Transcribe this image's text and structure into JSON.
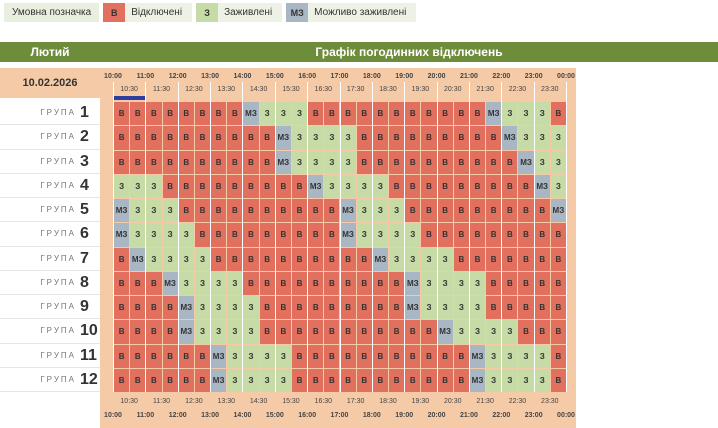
{
  "legend": {
    "title": "Умовна позначка",
    "items": [
      {
        "code": "В",
        "label": "Відключені",
        "color": "#e2705e"
      },
      {
        "code": "З",
        "label": "Заживлені",
        "color": "#c6dba5"
      },
      {
        "code": "МЗ",
        "label": "Можливо заживлені",
        "color": "#a9b6c4"
      }
    ]
  },
  "header": {
    "month": "Лютий",
    "title": "Графік погодинних відключень"
  },
  "date": "10.02.2026",
  "hours": [
    "10:00",
    "11:00",
    "12:00",
    "13:00",
    "14:00",
    "15:00",
    "16:00",
    "17:00",
    "18:00",
    "19:00",
    "20:00",
    "21:00",
    "22:00",
    "23:00",
    "00:00"
  ],
  "half_hours": [
    "10:30",
    "11:30",
    "12:30",
    "13:30",
    "14:30",
    "15:30",
    "16:30",
    "17:30",
    "18:30",
    "19:30",
    "20:30",
    "21:30",
    "22:30",
    "23:30"
  ],
  "groups": [
    {
      "label": "ГРУПА",
      "number": "1",
      "cells": [
        "В",
        "В",
        "В",
        "В",
        "В",
        "В",
        "В",
        "В",
        "МЗ",
        "З",
        "З",
        "З",
        "В",
        "В",
        "В",
        "В",
        "В",
        "В",
        "В",
        "В",
        "В",
        "В",
        "В",
        "МЗ",
        "З",
        "З",
        "З",
        "В"
      ]
    },
    {
      "label": "ГРУПА",
      "number": "2",
      "cells": [
        "В",
        "В",
        "В",
        "В",
        "В",
        "В",
        "В",
        "В",
        "В",
        "В",
        "МЗ",
        "З",
        "З",
        "З",
        "З",
        "В",
        "В",
        "В",
        "В",
        "В",
        "В",
        "В",
        "В",
        "В",
        "МЗ",
        "З",
        "З",
        "З"
      ]
    },
    {
      "label": "ГРУПА",
      "number": "3",
      "cells": [
        "В",
        "В",
        "В",
        "В",
        "В",
        "В",
        "В",
        "В",
        "В",
        "В",
        "МЗ",
        "З",
        "З",
        "З",
        "З",
        "В",
        "В",
        "В",
        "В",
        "В",
        "В",
        "В",
        "В",
        "В",
        "В",
        "МЗ",
        "З",
        "З"
      ]
    },
    {
      "label": "ГРУПА",
      "number": "4",
      "cells": [
        "З",
        "З",
        "З",
        "В",
        "В",
        "В",
        "В",
        "В",
        "В",
        "В",
        "В",
        "В",
        "МЗ",
        "З",
        "З",
        "З",
        "З",
        "В",
        "В",
        "В",
        "В",
        "В",
        "В",
        "В",
        "В",
        "В",
        "МЗ",
        "З"
      ]
    },
    {
      "label": "ГРУПА",
      "number": "5",
      "cells": [
        "МЗ",
        "З",
        "З",
        "З",
        "В",
        "В",
        "В",
        "В",
        "В",
        "В",
        "В",
        "В",
        "В",
        "В",
        "МЗ",
        "З",
        "З",
        "З",
        "В",
        "В",
        "В",
        "В",
        "В",
        "В",
        "В",
        "В",
        "В",
        "МЗ"
      ]
    },
    {
      "label": "ГРУПА",
      "number": "6",
      "cells": [
        "МЗ",
        "З",
        "З",
        "З",
        "З",
        "В",
        "В",
        "В",
        "В",
        "В",
        "В",
        "В",
        "В",
        "В",
        "МЗ",
        "З",
        "З",
        "З",
        "З",
        "В",
        "В",
        "В",
        "В",
        "В",
        "В",
        "В",
        "В",
        "В"
      ]
    },
    {
      "label": "ГРУПА",
      "number": "7",
      "cells": [
        "В",
        "МЗ",
        "З",
        "З",
        "З",
        "З",
        "В",
        "В",
        "В",
        "В",
        "В",
        "В",
        "В",
        "В",
        "В",
        "В",
        "МЗ",
        "З",
        "З",
        "З",
        "З",
        "В",
        "В",
        "В",
        "В",
        "В",
        "В",
        "В"
      ]
    },
    {
      "label": "ГРУПА",
      "number": "8",
      "cells": [
        "В",
        "В",
        "В",
        "МЗ",
        "З",
        "З",
        "З",
        "З",
        "В",
        "В",
        "В",
        "В",
        "В",
        "В",
        "В",
        "В",
        "В",
        "В",
        "МЗ",
        "З",
        "З",
        "З",
        "З",
        "В",
        "В",
        "В",
        "В",
        "В"
      ]
    },
    {
      "label": "ГРУПА",
      "number": "9",
      "cells": [
        "В",
        "В",
        "В",
        "В",
        "МЗ",
        "З",
        "З",
        "З",
        "З",
        "В",
        "В",
        "В",
        "В",
        "В",
        "В",
        "В",
        "В",
        "В",
        "МЗ",
        "З",
        "З",
        "З",
        "З",
        "В",
        "В",
        "В",
        "В",
        "В"
      ]
    },
    {
      "label": "ГРУПА",
      "number": "10",
      "cells": [
        "В",
        "В",
        "В",
        "В",
        "МЗ",
        "З",
        "З",
        "З",
        "З",
        "В",
        "В",
        "В",
        "В",
        "В",
        "В",
        "В",
        "В",
        "В",
        "В",
        "В",
        "МЗ",
        "З",
        "З",
        "З",
        "З",
        "В",
        "В",
        "В"
      ]
    },
    {
      "label": "ГРУПА",
      "number": "11",
      "cells": [
        "В",
        "В",
        "В",
        "В",
        "В",
        "В",
        "МЗ",
        "З",
        "З",
        "З",
        "З",
        "В",
        "В",
        "В",
        "В",
        "В",
        "В",
        "В",
        "В",
        "В",
        "В",
        "В",
        "МЗ",
        "З",
        "З",
        "З",
        "З",
        "В"
      ]
    },
    {
      "label": "ГРУПА",
      "number": "12",
      "cells": [
        "В",
        "В",
        "В",
        "В",
        "В",
        "В",
        "МЗ",
        "З",
        "З",
        "З",
        "З",
        "В",
        "В",
        "В",
        "В",
        "В",
        "В",
        "В",
        "В",
        "В",
        "В",
        "В",
        "МЗ",
        "З",
        "З",
        "З",
        "З",
        "В"
      ]
    }
  ]
}
